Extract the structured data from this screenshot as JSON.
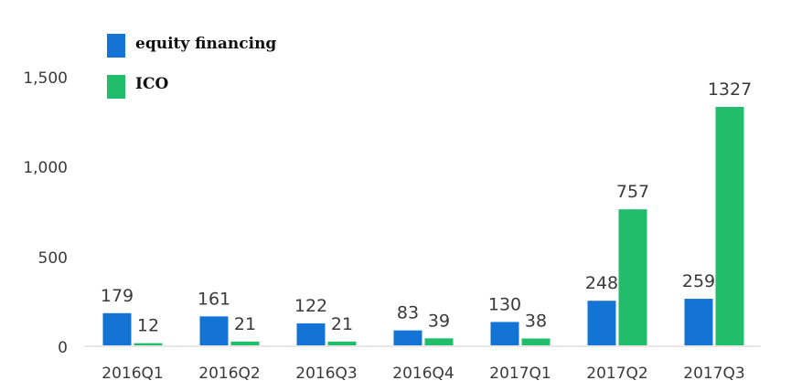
{
  "chart_data": {
    "type": "bar",
    "categories": [
      "2016Q1",
      "2016Q2",
      "2016Q3",
      "2016Q4",
      "2017Q1",
      "2017Q2",
      "2017Q3"
    ],
    "series": [
      {
        "name": "equity financing",
        "color": "#1474d6",
        "values": [
          179,
          161,
          122,
          83,
          130,
          248,
          259
        ]
      },
      {
        "name": "ICO",
        "color": "#22bd6b",
        "values": [
          12,
          21,
          21,
          39,
          38,
          757,
          1327
        ]
      }
    ],
    "y_ticks": [
      "1,500",
      "1,000",
      "500",
      "0"
    ],
    "y_tick_values": [
      1500,
      1000,
      500,
      0
    ],
    "ylim": [
      0,
      1500
    ],
    "grid": false,
    "legend_position": "top-left"
  }
}
